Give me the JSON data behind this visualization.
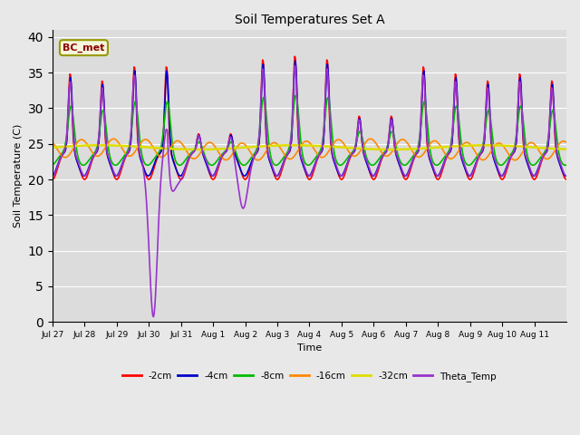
{
  "title": "Soil Temperatures Set A",
  "xlabel": "Time",
  "ylabel": "Soil Temperature (C)",
  "ylim": [
    0,
    41
  ],
  "yticks": [
    0,
    5,
    10,
    15,
    20,
    25,
    30,
    35,
    40
  ],
  "series": {
    "-2cm": {
      "color": "#ff0000",
      "lw": 1.2
    },
    "-4cm": {
      "color": "#0000cc",
      "lw": 1.2
    },
    "-8cm": {
      "color": "#00bb00",
      "lw": 1.2
    },
    "-16cm": {
      "color": "#ff8800",
      "lw": 1.2
    },
    "-32cm": {
      "color": "#dddd00",
      "lw": 1.8
    },
    "Theta_Temp": {
      "color": "#9933cc",
      "lw": 1.2
    }
  },
  "tick_labels": [
    "Jul 27",
    "Jul 28",
    "Jul 29",
    "Jul 30",
    "Jul 31",
    "Aug 1",
    "Aug 2",
    "Aug 3",
    "Aug 4",
    "Aug 5",
    "Aug 6",
    "Aug 7",
    "Aug 8",
    "Aug 9",
    "Aug 10",
    "Aug 11"
  ],
  "annotation_text": "BC_met",
  "bg_color": "#dcdcdc",
  "fig_color": "#e8e8e8",
  "grid_color": "#ffffff"
}
